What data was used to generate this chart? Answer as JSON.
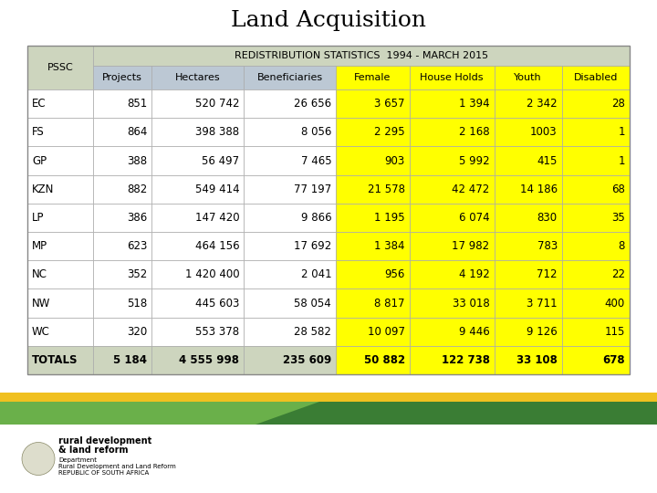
{
  "title": "Land Acquisition",
  "subtitle": "REDISTRIBUTION STATISTICS  1994 - MARCH 2015",
  "col_headers": [
    "PSSC",
    "Projects",
    "Hectares",
    "Beneficiaries",
    "Female",
    "House Holds",
    "Youth",
    "Disabled"
  ],
  "rows": [
    [
      "EC",
      "851",
      "520 742",
      "26 656",
      "3 657",
      "1 394",
      "2 342",
      "28"
    ],
    [
      "FS",
      "864",
      "398 388",
      "8 056",
      "2 295",
      "2 168",
      "1003",
      "1"
    ],
    [
      "GP",
      "388",
      "56 497",
      "7 465",
      "903",
      "5 992",
      "415",
      "1"
    ],
    [
      "KZN",
      "882",
      "549 414",
      "77 197",
      "21 578",
      "42 472",
      "14 186",
      "68"
    ],
    [
      "LP",
      "386",
      "147 420",
      "9 866",
      "1 195",
      "6 074",
      "830",
      "35"
    ],
    [
      "MP",
      "623",
      "464 156",
      "17 692",
      "1 384",
      "17 982",
      "783",
      "8"
    ],
    [
      "NC",
      "352",
      "1 420 400",
      "2 041",
      "956",
      "4 192",
      "712",
      "22"
    ],
    [
      "NW",
      "518",
      "445 603",
      "58 054",
      "8 817",
      "33 018",
      "3 711",
      "400"
    ],
    [
      "WC",
      "320",
      "553 378",
      "28 582",
      "10 097",
      "9 446",
      "9 126",
      "115"
    ],
    [
      "TOTALS",
      "5 184",
      "4 555 998",
      "235 609",
      "50 882",
      "122 738",
      "33 108",
      "678"
    ]
  ],
  "color_header_left": "#cdd5be",
  "color_header_blue": "#bcc8d4",
  "color_header_yellow": "#ffff00",
  "color_row_white": "#ffffff",
  "color_row_yellow": "#ffff00",
  "color_totals_left": "#cdd5be",
  "color_subtitle_bg": "#cdd5be",
  "bg_color": "#ffffff",
  "title_fontsize": 18,
  "subtitle_fontsize": 8,
  "header_fontsize": 8,
  "cell_fontsize": 8.5
}
